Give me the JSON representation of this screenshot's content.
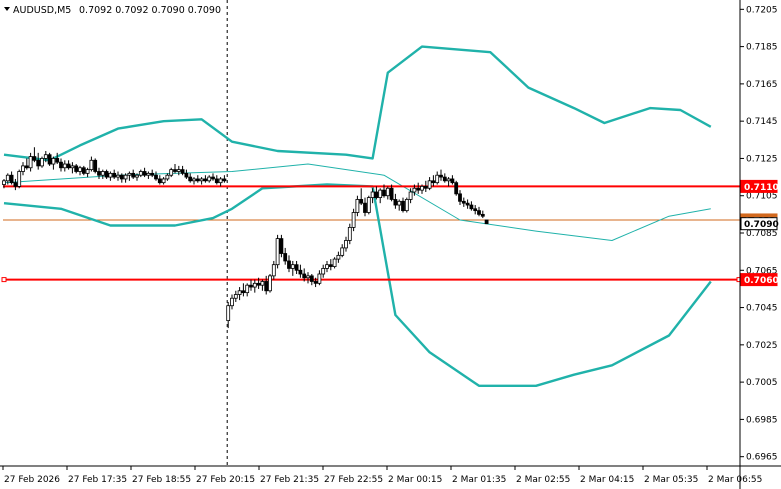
{
  "header": {
    "symbol": "AUDUSD,M5",
    "ohlc": "0.7092 0.7092 0.7090 0.7090"
  },
  "colors": {
    "bollinger": "#20b2aa",
    "level_line": "#ff0000",
    "last_price_line": "#d2691e",
    "candle": "#000000"
  },
  "chart_data": {
    "type": "candlestick",
    "title": "AUDUSD,M5",
    "ylim": [
      0.696,
      0.721
    ],
    "y_ticks": [
      "0.7205",
      "0.7185",
      "0.7165",
      "0.7145",
      "0.7125",
      "0.7105",
      "0.7085",
      "0.7065",
      "0.7045",
      "0.7025",
      "0.7005",
      "0.6985",
      "0.6965"
    ],
    "x_ticks": [
      "27 Feb 2026",
      "27 Feb 17:35",
      "27 Feb 18:55",
      "27 Feb 20:15",
      "27 Feb 21:35",
      "27 Feb 22:55",
      "2 Mar 00:15",
      "2 Mar 01:35",
      "2 Mar 02:55",
      "2 Mar 04:15",
      "2 Mar 05:35",
      "2 Mar 06:55"
    ],
    "horizontal_levels": [
      {
        "label": "0.7110",
        "value": 0.711
      },
      {
        "label": "0.7060",
        "value": 0.706
      }
    ],
    "last_price": {
      "label": "0.7090",
      "value": 0.709
    },
    "ask_line": {
      "label": "0.7092",
      "value": 0.7092
    },
    "session_break_index": 59,
    "bollinger": {
      "upper": [
        [
          0,
          0.7127
        ],
        [
          12,
          0.7124
        ],
        [
          20,
          0.7132
        ],
        [
          30,
          0.7141
        ],
        [
          42,
          0.7145
        ],
        [
          52,
          0.7146
        ],
        [
          60,
          0.7134
        ],
        [
          72,
          0.7129
        ],
        [
          90,
          0.7127
        ],
        [
          97,
          0.7125
        ],
        [
          101,
          0.7171
        ],
        [
          110,
          0.7185
        ],
        [
          128,
          0.7182
        ],
        [
          138,
          0.7163
        ],
        [
          150,
          0.7152
        ],
        [
          158,
          0.7144
        ],
        [
          170,
          0.7152
        ],
        [
          178,
          0.7151
        ],
        [
          186,
          0.7142
        ]
      ],
      "middle": [
        [
          0,
          0.7112
        ],
        [
          30,
          0.7116
        ],
        [
          60,
          0.7118
        ],
        [
          80,
          0.7122
        ],
        [
          100,
          0.7116
        ],
        [
          120,
          0.7092
        ],
        [
          140,
          0.7086
        ],
        [
          160,
          0.7081
        ],
        [
          175,
          0.7094
        ],
        [
          186,
          0.7098
        ]
      ],
      "lower": [
        [
          0,
          0.7101
        ],
        [
          15,
          0.7098
        ],
        [
          28,
          0.7089
        ],
        [
          45,
          0.7089
        ],
        [
          55,
          0.7093
        ],
        [
          60,
          0.7098
        ],
        [
          68,
          0.7109
        ],
        [
          85,
          0.7111
        ],
        [
          97,
          0.711
        ],
        [
          103,
          0.7041
        ],
        [
          112,
          0.7021
        ],
        [
          125,
          0.7003
        ],
        [
          140,
          0.7003
        ],
        [
          150,
          0.7009
        ],
        [
          160,
          0.7014
        ],
        [
          175,
          0.703
        ],
        [
          186,
          0.7059
        ]
      ]
    },
    "candles": [
      [
        0.7111,
        0.7114,
        0.7109,
        0.7113
      ],
      [
        0.7113,
        0.7117,
        0.7111,
        0.7116
      ],
      [
        0.7116,
        0.7118,
        0.7111,
        0.7112
      ],
      [
        0.7112,
        0.7114,
        0.7108,
        0.711
      ],
      [
        0.711,
        0.7119,
        0.7109,
        0.7118
      ],
      [
        0.7118,
        0.7123,
        0.7116,
        0.7121
      ],
      [
        0.7121,
        0.7125,
        0.7119,
        0.712
      ],
      [
        0.712,
        0.7128,
        0.7118,
        0.7126
      ],
      [
        0.7126,
        0.7131,
        0.7123,
        0.7124
      ],
      [
        0.7124,
        0.7128,
        0.7119,
        0.7121
      ],
      [
        0.7121,
        0.7126,
        0.712,
        0.7125
      ],
      [
        0.7125,
        0.7129,
        0.7123,
        0.7127
      ],
      [
        0.7127,
        0.7128,
        0.7121,
        0.7122
      ],
      [
        0.7122,
        0.7126,
        0.7119,
        0.7125
      ],
      [
        0.7125,
        0.7128,
        0.7122,
        0.7123
      ],
      [
        0.7123,
        0.7125,
        0.7118,
        0.712
      ],
      [
        0.712,
        0.7124,
        0.7118,
        0.7122
      ],
      [
        0.7122,
        0.7124,
        0.7119,
        0.712
      ],
      [
        0.712,
        0.7123,
        0.7117,
        0.7121
      ],
      [
        0.7121,
        0.7122,
        0.7117,
        0.7118
      ],
      [
        0.7118,
        0.7121,
        0.7116,
        0.712
      ],
      [
        0.712,
        0.7121,
        0.7116,
        0.7117
      ],
      [
        0.7117,
        0.712,
        0.7115,
        0.7119
      ],
      [
        0.7119,
        0.7126,
        0.7118,
        0.7124
      ],
      [
        0.7124,
        0.7125,
        0.7117,
        0.7118
      ],
      [
        0.7118,
        0.712,
        0.7114,
        0.7116
      ],
      [
        0.7116,
        0.7119,
        0.7114,
        0.7118
      ],
      [
        0.7118,
        0.7119,
        0.7114,
        0.7115
      ],
      [
        0.7115,
        0.7118,
        0.7113,
        0.7117
      ],
      [
        0.7117,
        0.7119,
        0.7114,
        0.7115
      ],
      [
        0.7115,
        0.7118,
        0.7113,
        0.7116
      ],
      [
        0.7116,
        0.7117,
        0.7112,
        0.7114
      ],
      [
        0.7114,
        0.7117,
        0.7112,
        0.7116
      ],
      [
        0.7116,
        0.7118,
        0.7113,
        0.7117
      ],
      [
        0.7117,
        0.7119,
        0.7114,
        0.7115
      ],
      [
        0.7115,
        0.7117,
        0.7113,
        0.7116
      ],
      [
        0.7116,
        0.7119,
        0.7115,
        0.7118
      ],
      [
        0.7118,
        0.712,
        0.7115,
        0.7116
      ],
      [
        0.7116,
        0.7118,
        0.7114,
        0.7117
      ],
      [
        0.7117,
        0.7119,
        0.7115,
        0.7116
      ],
      [
        0.7116,
        0.7118,
        0.7113,
        0.7114
      ],
      [
        0.7114,
        0.7116,
        0.7111,
        0.7112
      ],
      [
        0.7112,
        0.7115,
        0.7111,
        0.7114
      ],
      [
        0.7114,
        0.7117,
        0.7113,
        0.7116
      ],
      [
        0.7116,
        0.712,
        0.7115,
        0.7119
      ],
      [
        0.7119,
        0.7122,
        0.7117,
        0.7118
      ],
      [
        0.7118,
        0.7121,
        0.7116,
        0.7119
      ],
      [
        0.7119,
        0.7121,
        0.7116,
        0.7117
      ],
      [
        0.7117,
        0.7119,
        0.7114,
        0.7115
      ],
      [
        0.7115,
        0.7117,
        0.7112,
        0.7113
      ],
      [
        0.7113,
        0.7115,
        0.7111,
        0.7114
      ],
      [
        0.7114,
        0.7116,
        0.7112,
        0.7113
      ],
      [
        0.7113,
        0.7115,
        0.7111,
        0.7114
      ],
      [
        0.7114,
        0.7116,
        0.7112,
        0.7113
      ],
      [
        0.7113,
        0.7116,
        0.7112,
        0.7115
      ],
      [
        0.7115,
        0.7117,
        0.7113,
        0.7114
      ],
      [
        0.7114,
        0.7116,
        0.7111,
        0.7112
      ],
      [
        0.7112,
        0.7115,
        0.711,
        0.7114
      ],
      [
        0.7114,
        0.7116,
        0.7112,
        0.7113
      ],
      [
        0.7038,
        0.7048,
        0.7034,
        0.7046
      ],
      [
        0.7046,
        0.7052,
        0.7044,
        0.705
      ],
      [
        0.705,
        0.7054,
        0.7048,
        0.7052
      ],
      [
        0.7052,
        0.7056,
        0.7049,
        0.7054
      ],
      [
        0.7054,
        0.7058,
        0.7051,
        0.7053
      ],
      [
        0.7053,
        0.7058,
        0.7051,
        0.7057
      ],
      [
        0.7057,
        0.706,
        0.7054,
        0.7056
      ],
      [
        0.7056,
        0.706,
        0.7053,
        0.7058
      ],
      [
        0.7058,
        0.7061,
        0.7055,
        0.7057
      ],
      [
        0.7057,
        0.706,
        0.7054,
        0.7059
      ],
      [
        0.7059,
        0.7062,
        0.7052,
        0.7054
      ],
      [
        0.7054,
        0.7063,
        0.7053,
        0.7062
      ],
      [
        0.7062,
        0.707,
        0.706,
        0.7068
      ],
      [
        0.7068,
        0.7084,
        0.7066,
        0.7082
      ],
      [
        0.7082,
        0.7084,
        0.7072,
        0.7074
      ],
      [
        0.7074,
        0.7077,
        0.7068,
        0.707
      ],
      [
        0.707,
        0.7073,
        0.7064,
        0.7066
      ],
      [
        0.7066,
        0.707,
        0.7062,
        0.7068
      ],
      [
        0.7068,
        0.707,
        0.7063,
        0.7065
      ],
      [
        0.7065,
        0.7068,
        0.7061,
        0.7063
      ],
      [
        0.7063,
        0.7066,
        0.7059,
        0.7061
      ],
      [
        0.7061,
        0.7064,
        0.7058,
        0.7062
      ],
      [
        0.7062,
        0.7063,
        0.7057,
        0.7059
      ],
      [
        0.7059,
        0.7061,
        0.7056,
        0.7058
      ],
      [
        0.7058,
        0.7065,
        0.7057,
        0.7063
      ],
      [
        0.7063,
        0.7068,
        0.7061,
        0.7066
      ],
      [
        0.7066,
        0.707,
        0.7064,
        0.7068
      ],
      [
        0.7068,
        0.7071,
        0.7065,
        0.7067
      ],
      [
        0.7067,
        0.7072,
        0.7066,
        0.7071
      ],
      [
        0.7071,
        0.7075,
        0.7069,
        0.7073
      ],
      [
        0.7073,
        0.7079,
        0.7072,
        0.7077
      ],
      [
        0.7077,
        0.7083,
        0.7075,
        0.7081
      ],
      [
        0.7081,
        0.709,
        0.7079,
        0.7088
      ],
      [
        0.7088,
        0.7098,
        0.7086,
        0.7096
      ],
      [
        0.7096,
        0.7105,
        0.7094,
        0.7103
      ],
      [
        0.7103,
        0.7109,
        0.71,
        0.7101
      ],
      [
        0.7101,
        0.7104,
        0.7094,
        0.7096
      ],
      [
        0.7096,
        0.7105,
        0.7095,
        0.7104
      ],
      [
        0.7104,
        0.7109,
        0.7101,
        0.7107
      ],
      [
        0.7107,
        0.711,
        0.7103,
        0.7104
      ],
      [
        0.7104,
        0.7109,
        0.7101,
        0.7108
      ],
      [
        0.7108,
        0.7111,
        0.7104,
        0.7105
      ],
      [
        0.7105,
        0.711,
        0.7103,
        0.7109
      ],
      [
        0.7109,
        0.7111,
        0.7102,
        0.7103
      ],
      [
        0.7103,
        0.7106,
        0.7098,
        0.71
      ],
      [
        0.71,
        0.7103,
        0.7097,
        0.7102
      ],
      [
        0.7102,
        0.7104,
        0.7096,
        0.7097
      ],
      [
        0.7097,
        0.7104,
        0.7096,
        0.7103
      ],
      [
        0.7103,
        0.7109,
        0.7101,
        0.7107
      ],
      [
        0.7107,
        0.7111,
        0.7105,
        0.7109
      ],
      [
        0.7109,
        0.7112,
        0.7106,
        0.7108
      ],
      [
        0.7108,
        0.7111,
        0.7106,
        0.711
      ],
      [
        0.711,
        0.7113,
        0.7107,
        0.7109
      ],
      [
        0.7109,
        0.7115,
        0.7108,
        0.7113
      ],
      [
        0.7113,
        0.7116,
        0.711,
        0.7112
      ],
      [
        0.7112,
        0.7118,
        0.7111,
        0.7116
      ],
      [
        0.7116,
        0.7119,
        0.7113,
        0.7115
      ],
      [
        0.7115,
        0.7117,
        0.7112,
        0.7113
      ],
      [
        0.7113,
        0.7115,
        0.711,
        0.7114
      ],
      [
        0.7114,
        0.7116,
        0.7111,
        0.7112
      ],
      [
        0.7112,
        0.7113,
        0.7105,
        0.7106
      ],
      [
        0.7106,
        0.7108,
        0.71,
        0.7102
      ],
      [
        0.7102,
        0.7104,
        0.7099,
        0.7101
      ],
      [
        0.7101,
        0.7103,
        0.7098,
        0.71
      ],
      [
        0.71,
        0.7102,
        0.7097,
        0.7098
      ],
      [
        0.7098,
        0.71,
        0.7095,
        0.7097
      ],
      [
        0.7097,
        0.7099,
        0.7094,
        0.7095
      ],
      [
        0.7095,
        0.7097,
        0.7093,
        0.7094
      ],
      [
        0.7092,
        0.7092,
        0.709,
        0.709
      ]
    ]
  }
}
